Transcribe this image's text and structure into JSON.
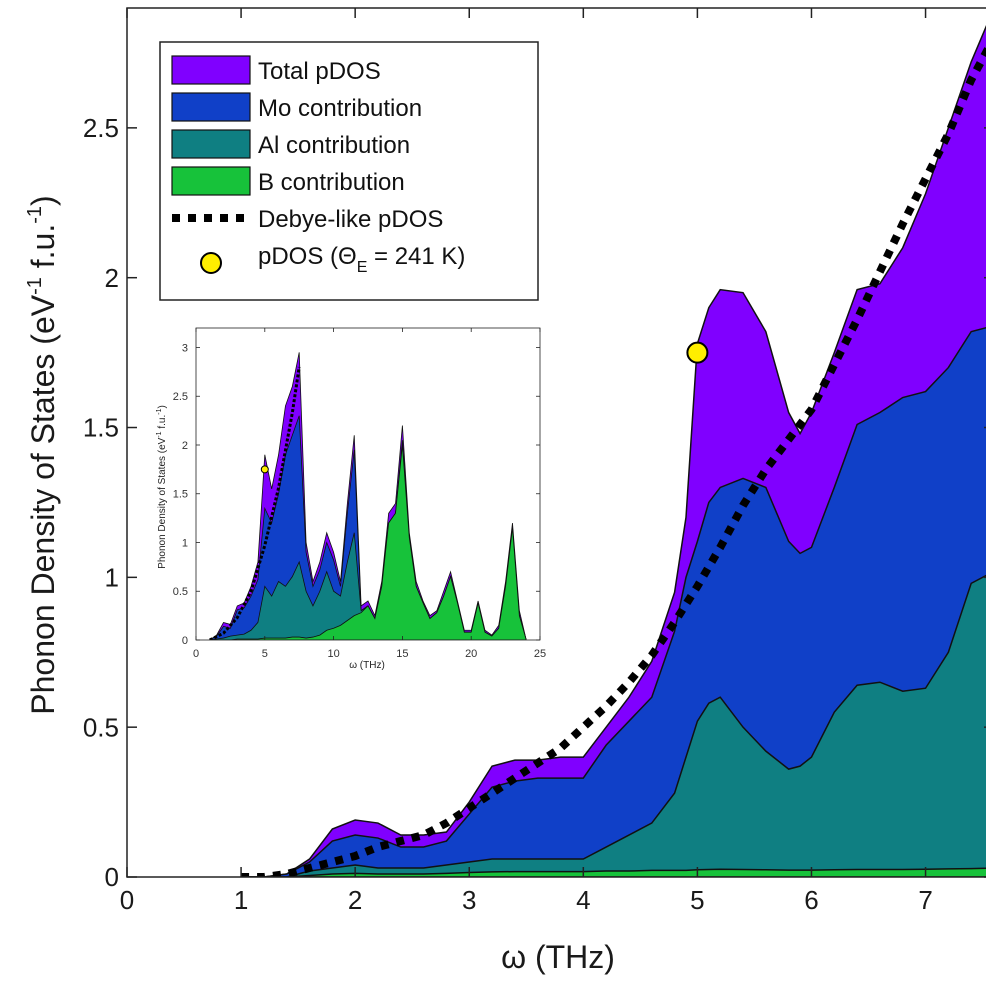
{
  "chart_data": {
    "type": "area",
    "xlabel": "ω (THz)",
    "ylabel": "Phonon Density of States (eV-1 f.u.-1)",
    "ylabel_parts": {
      "main": "Phonon Density of States (eV",
      "sup1": "-1",
      "mid": " f.u.",
      "sup2": "-1",
      "end": ")"
    },
    "xlim": [
      0,
      7.6
    ],
    "ylim": [
      0,
      2.9
    ],
    "xticks": [
      "0",
      "1",
      "2",
      "3",
      "4",
      "5",
      "6",
      "7"
    ],
    "yticks": [
      "0",
      "0.5",
      "1",
      "1.5",
      "2",
      "2.5"
    ],
    "legend_position": "top-left",
    "legend": [
      {
        "label": "Total pDOS",
        "kind": "patch",
        "color": "#8000ff"
      },
      {
        "label": "Mo contribution",
        "kind": "patch",
        "color": "#1040c8"
      },
      {
        "label": "Al contribution",
        "kind": "patch",
        "color": "#0f7f82"
      },
      {
        "label": "B contribution",
        "kind": "patch",
        "color": "#17c23a"
      },
      {
        "label": "Debye-like pDOS",
        "kind": "dotted-line",
        "color": "#000000"
      },
      {
        "label": "pDOS (ΘE = 241 K)",
        "kind": "marker",
        "color": "#ffee00",
        "main": "pDOS (Θ",
        "sub": "E",
        "end": " = 241 K)"
      }
    ],
    "x": [
      1.0,
      1.2,
      1.4,
      1.6,
      1.8,
      2.0,
      2.2,
      2.4,
      2.6,
      2.8,
      3.0,
      3.2,
      3.4,
      3.6,
      3.8,
      4.0,
      4.2,
      4.4,
      4.6,
      4.8,
      4.9,
      5.0,
      5.1,
      5.2,
      5.4,
      5.6,
      5.8,
      5.9,
      6.0,
      6.2,
      6.4,
      6.6,
      6.8,
      7.0,
      7.2,
      7.4,
      7.6
    ],
    "series": [
      {
        "name": "Total pDOS",
        "color": "#8000ff",
        "values": [
          0,
          0,
          0.01,
          0.06,
          0.16,
          0.19,
          0.18,
          0.14,
          0.14,
          0.15,
          0.25,
          0.37,
          0.39,
          0.39,
          0.4,
          0.4,
          0.5,
          0.6,
          0.72,
          0.95,
          1.2,
          1.78,
          1.9,
          1.96,
          1.95,
          1.82,
          1.55,
          1.48,
          1.55,
          1.75,
          1.96,
          1.98,
          2.1,
          2.28,
          2.5,
          2.72,
          2.9
        ]
      },
      {
        "name": "Mo contribution",
        "color": "#1040c8",
        "values": [
          0,
          0,
          0.01,
          0.05,
          0.12,
          0.14,
          0.13,
          0.1,
          0.1,
          0.12,
          0.21,
          0.3,
          0.32,
          0.33,
          0.33,
          0.33,
          0.44,
          0.52,
          0.6,
          0.82,
          1.0,
          1.12,
          1.25,
          1.3,
          1.33,
          1.3,
          1.12,
          1.08,
          1.1,
          1.3,
          1.51,
          1.55,
          1.6,
          1.62,
          1.7,
          1.82,
          1.84
        ]
      },
      {
        "name": "Al contribution",
        "color": "#0f7f82",
        "values": [
          0,
          0,
          0,
          0.02,
          0.03,
          0.04,
          0.03,
          0.03,
          0.03,
          0.04,
          0.05,
          0.06,
          0.06,
          0.06,
          0.06,
          0.06,
          0.1,
          0.14,
          0.18,
          0.28,
          0.4,
          0.52,
          0.58,
          0.6,
          0.5,
          0.42,
          0.36,
          0.37,
          0.4,
          0.55,
          0.64,
          0.65,
          0.62,
          0.63,
          0.75,
          0.98,
          1.02
        ]
      },
      {
        "name": "B contribution",
        "color": "#17c23a",
        "values": [
          0,
          0,
          0,
          0.005,
          0.01,
          0.012,
          0.01,
          0.01,
          0.01,
          0.012,
          0.015,
          0.017,
          0.018,
          0.018,
          0.018,
          0.018,
          0.02,
          0.02,
          0.022,
          0.022,
          0.022,
          0.024,
          0.025,
          0.026,
          0.025,
          0.024,
          0.023,
          0.023,
          0.023,
          0.024,
          0.025,
          0.025,
          0.025,
          0.026,
          0.027,
          0.028,
          0.03
        ]
      }
    ],
    "debye": {
      "name": "Debye-like pDOS",
      "x": [
        1.0,
        1.2,
        1.4,
        1.6,
        1.8,
        2.0,
        2.2,
        2.4,
        2.6,
        2.8,
        3.0,
        3.2,
        3.4,
        3.6,
        3.8,
        4.0,
        4.2,
        4.4,
        4.6,
        4.8,
        5.0,
        5.2,
        5.4,
        5.6,
        5.8,
        6.0,
        6.2,
        6.4,
        6.6,
        6.8,
        7.0,
        7.2,
        7.4,
        7.6
      ],
      "values": [
        0,
        0,
        0.01,
        0.03,
        0.05,
        0.07,
        0.1,
        0.12,
        0.14,
        0.18,
        0.23,
        0.28,
        0.33,
        0.38,
        0.43,
        0.5,
        0.57,
        0.65,
        0.74,
        0.85,
        0.97,
        1.1,
        1.24,
        1.36,
        1.46,
        1.56,
        1.71,
        1.86,
        2.02,
        2.18,
        2.33,
        2.48,
        2.66,
        2.8
      ]
    },
    "marker_point": {
      "name": "pDOS (ΘE = 241 K)",
      "x": 5.0,
      "y": 1.75
    },
    "inset": {
      "type": "area",
      "xlabel": "ω (THz)",
      "ylabel": "Phonon Density of States (eV-1 f.u.-1)",
      "ylabel_parts": {
        "main": "Phonon Density of States (eV",
        "sup1": "-1",
        "mid": " f.u.",
        "sup2": "-1",
        "end": ")"
      },
      "xlim": [
        0,
        25
      ],
      "ylim": [
        0,
        3.2
      ],
      "xticks": [
        "0",
        "5",
        "10",
        "15",
        "20",
        "25"
      ],
      "yticks": [
        "0",
        "0.5",
        "1",
        "1.5",
        "2",
        "2.5",
        "3"
      ],
      "x": [
        1.0,
        1.5,
        2.0,
        2.5,
        3.0,
        3.5,
        4.0,
        4.5,
        5.0,
        5.5,
        6.0,
        6.5,
        7.0,
        7.5,
        8.0,
        8.5,
        9.0,
        9.5,
        10.0,
        10.5,
        11.0,
        11.5,
        12.0,
        12.5,
        13.0,
        13.5,
        14.0,
        14.5,
        15.0,
        15.5,
        16.0,
        16.5,
        17.0,
        17.5,
        18.0,
        18.5,
        19.0,
        19.5,
        20.0,
        20.5,
        21.0,
        21.5,
        22.0,
        22.5,
        23.0,
        23.5,
        24.0
      ],
      "series": [
        {
          "name": "Total pDOS",
          "color": "#8000ff",
          "values": [
            0,
            0.05,
            0.18,
            0.16,
            0.35,
            0.38,
            0.55,
            0.8,
            1.9,
            1.55,
            1.9,
            2.4,
            2.6,
            2.95,
            1.0,
            0.6,
            0.8,
            1.1,
            0.9,
            0.6,
            1.4,
            2.1,
            0.35,
            0.4,
            0.25,
            0.6,
            1.3,
            1.4,
            2.2,
            1.1,
            0.6,
            0.4,
            0.25,
            0.3,
            0.5,
            0.7,
            0.4,
            0.1,
            0.1,
            0.4,
            0.1,
            0.05,
            0.15,
            0.6,
            1.2,
            0.3,
            0
          ]
        },
        {
          "name": "Mo contribution",
          "color": "#1040c8",
          "values": [
            0,
            0.04,
            0.14,
            0.12,
            0.31,
            0.33,
            0.45,
            0.62,
            1.35,
            1.2,
            1.5,
            1.9,
            2.1,
            2.3,
            0.9,
            0.55,
            0.72,
            1.0,
            0.82,
            0.55,
            1.3,
            1.95,
            0.3,
            0.35,
            0.22,
            0.55,
            1.2,
            1.3,
            2.05,
            1.05,
            0.55,
            0.38,
            0.22,
            0.28,
            0.45,
            0.65,
            0.38,
            0.08,
            0.08,
            0.38,
            0.08,
            0.04,
            0.12,
            0.55,
            1.15,
            0.25,
            0
          ]
        },
        {
          "name": "Al contribution",
          "color": "#0f7f82",
          "values": [
            0,
            0.01,
            0.02,
            0.04,
            0.05,
            0.06,
            0.1,
            0.18,
            0.55,
            0.45,
            0.6,
            0.55,
            0.65,
            0.8,
            0.5,
            0.35,
            0.5,
            0.7,
            0.5,
            0.45,
            0.8,
            1.1,
            0.3,
            0.35,
            0.22,
            0.55,
            1.2,
            1.3,
            2.0,
            1.05,
            0.55,
            0.38,
            0.22,
            0.28,
            0.45,
            0.65,
            0.38,
            0.08,
            0.08,
            0.38,
            0.08,
            0.04,
            0.12,
            0.55,
            1.15,
            0.25,
            0
          ]
        },
        {
          "name": "B contribution",
          "color": "#17c23a",
          "values": [
            0,
            0,
            0,
            0,
            0.01,
            0.01,
            0.01,
            0.01,
            0.02,
            0.02,
            0.02,
            0.02,
            0.03,
            0.03,
            0.02,
            0.03,
            0.05,
            0.1,
            0.12,
            0.15,
            0.2,
            0.25,
            0.28,
            0.35,
            0.22,
            0.55,
            1.2,
            1.3,
            2.0,
            1.05,
            0.55,
            0.38,
            0.22,
            0.28,
            0.45,
            0.65,
            0.38,
            0.08,
            0.08,
            0.38,
            0.08,
            0.04,
            0.12,
            0.55,
            1.15,
            0.25,
            0
          ]
        }
      ],
      "debye": {
        "x": [
          1.0,
          2.0,
          3.0,
          4.0,
          5.0,
          6.0,
          7.0,
          7.5
        ],
        "values": [
          0,
          0.07,
          0.23,
          0.5,
          0.97,
          1.56,
          2.33,
          2.8
        ]
      },
      "marker_point": {
        "x": 5.0,
        "y": 1.75
      }
    }
  }
}
